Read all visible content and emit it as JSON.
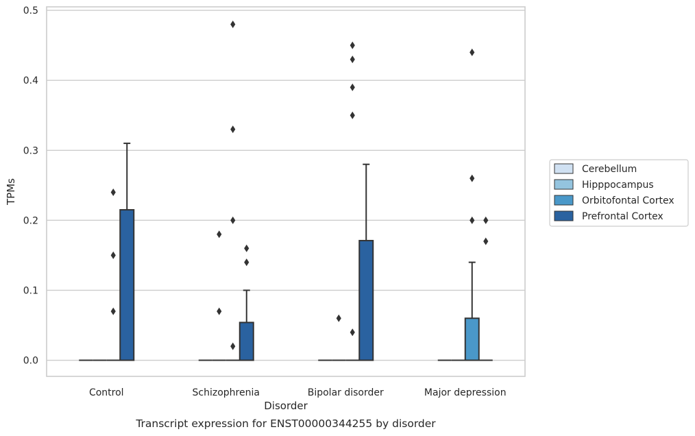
{
  "chart_data": {
    "type": "box",
    "title": "",
    "caption": "Transcript expression for ENST00000344255 by disorder",
    "xlabel": "Disorder",
    "ylabel": "TPMs",
    "ylim": [
      -0.023,
      0.505
    ],
    "yticks": [
      "0.0",
      "0.1",
      "0.2",
      "0.3",
      "0.4",
      "0.5"
    ],
    "grid": true,
    "legend_position": "right",
    "categories": [
      "Control",
      "Schizophrenia",
      "Bipolar disorder",
      "Major depression"
    ],
    "series": [
      {
        "name": "Cerebellum",
        "color": "#d0e1f2",
        "boxes": [
          {
            "q1": 0,
            "median": 0,
            "q3": 0,
            "whisker_high": 0,
            "outliers": []
          },
          {
            "q1": 0,
            "median": 0,
            "q3": 0,
            "whisker_high": 0,
            "outliers": []
          },
          {
            "q1": 0,
            "median": 0,
            "q3": 0,
            "whisker_high": 0,
            "outliers": []
          },
          {
            "q1": 0,
            "median": 0,
            "q3": 0,
            "whisker_high": 0,
            "outliers": []
          }
        ]
      },
      {
        "name": "Hipppocampus",
        "color": "#94c4df",
        "boxes": [
          {
            "q1": 0,
            "median": 0,
            "q3": 0,
            "whisker_high": 0,
            "outliers": []
          },
          {
            "q1": 0,
            "median": 0,
            "q3": 0,
            "whisker_high": 0,
            "outliers": [
              0.18,
              0.07
            ]
          },
          {
            "q1": 0,
            "median": 0,
            "q3": 0,
            "whisker_high": 0,
            "outliers": [
              0.06
            ]
          },
          {
            "q1": 0,
            "median": 0,
            "q3": 0,
            "whisker_high": 0,
            "outliers": []
          }
        ]
      },
      {
        "name": "Orbitofontal Cortex",
        "color": "#4a98c9",
        "boxes": [
          {
            "q1": 0,
            "median": 0,
            "q3": 0,
            "whisker_high": 0,
            "outliers": [
              0.24,
              0.15,
              0.07
            ]
          },
          {
            "q1": 0,
            "median": 0,
            "q3": 0,
            "whisker_high": 0,
            "outliers": [
              0.48,
              0.33,
              0.2,
              0.02
            ]
          },
          {
            "q1": 0,
            "median": 0,
            "q3": 0,
            "whisker_high": 0,
            "outliers": [
              0.45,
              0.43,
              0.39,
              0.35,
              0.04
            ]
          },
          {
            "q1": 0,
            "median": 0,
            "q3": 0.06,
            "whisker_high": 0.14,
            "outliers": [
              0.44,
              0.26,
              0.2
            ]
          }
        ]
      },
      {
        "name": "Prefrontal Cortex",
        "color": "#2a62a0",
        "boxes": [
          {
            "q1": 0,
            "median": 0,
            "q3": 0.215,
            "whisker_high": 0.31,
            "outliers": []
          },
          {
            "q1": 0,
            "median": 0,
            "q3": 0.054,
            "whisker_high": 0.1,
            "outliers": [
              0.16,
              0.14
            ]
          },
          {
            "q1": 0,
            "median": 0,
            "q3": 0.171,
            "whisker_high": 0.28,
            "outliers": []
          },
          {
            "q1": 0,
            "median": 0,
            "q3": 0,
            "whisker_high": 0,
            "outliers": [
              0.2,
              0.17
            ]
          }
        ]
      }
    ]
  }
}
